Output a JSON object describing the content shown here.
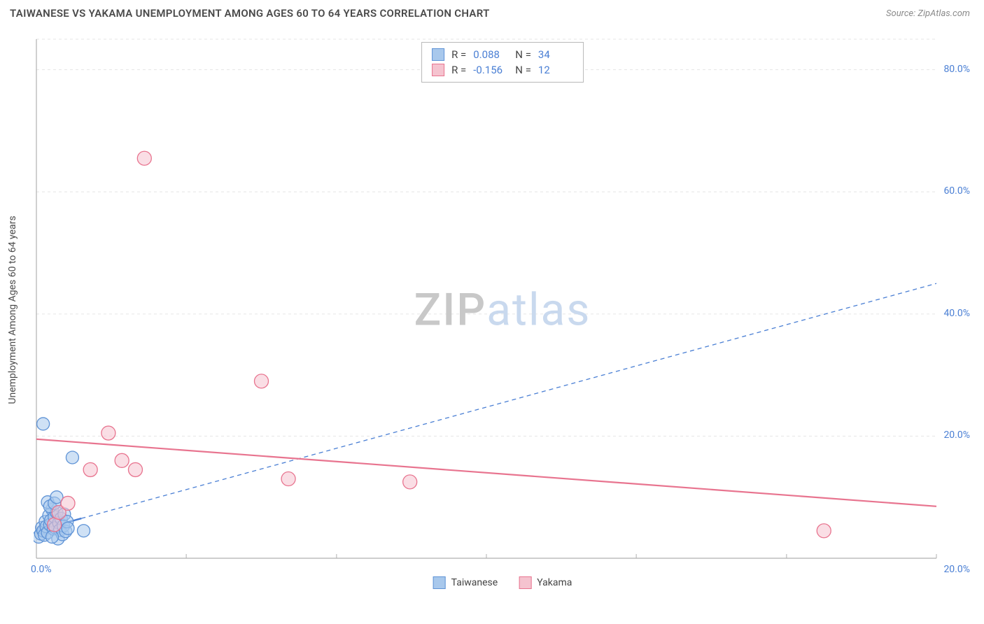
{
  "header": {
    "title": "TAIWANESE VS YAKAMA UNEMPLOYMENT AMONG AGES 60 TO 64 YEARS CORRELATION CHART",
    "source": "Source: ZipAtlas.com"
  },
  "chart": {
    "type": "scatter",
    "ylabel": "Unemployment Among Ages 60 to 64 years",
    "xlim": [
      0,
      20
    ],
    "ylim": [
      0,
      85
    ],
    "xtick_positions": [
      0,
      3.33,
      6.67,
      10,
      13.33,
      16.67,
      20
    ],
    "xtick_labels": [
      "0.0%",
      "",
      "",
      "",
      "",
      "",
      "20.0%"
    ],
    "ytick_positions": [
      20,
      40,
      60,
      80
    ],
    "ytick_labels": [
      "20.0%",
      "40.0%",
      "60.0%",
      "80.0%"
    ],
    "grid_color": "#e5e5e5",
    "grid_dash": "4,4",
    "axis_color": "#b0b0b0",
    "background_color": "#ffffff",
    "watermark": {
      "part1": "ZIP",
      "part2": "atlas"
    },
    "series": [
      {
        "name": "Taiwanese",
        "fill": "#a8c8ec",
        "stroke": "#5f93d6",
        "fill_opacity": 0.55,
        "marker_r": 9,
        "points": [
          [
            0.05,
            3.5
          ],
          [
            0.1,
            4.0
          ],
          [
            0.12,
            5.0
          ],
          [
            0.15,
            4.5
          ],
          [
            0.18,
            3.8
          ],
          [
            0.2,
            6.0
          ],
          [
            0.22,
            5.2
          ],
          [
            0.25,
            4.2
          ],
          [
            0.28,
            7.0
          ],
          [
            0.3,
            5.5
          ],
          [
            0.32,
            6.2
          ],
          [
            0.35,
            8.0
          ],
          [
            0.38,
            4.8
          ],
          [
            0.4,
            6.8
          ],
          [
            0.42,
            5.0
          ],
          [
            0.45,
            7.5
          ],
          [
            0.15,
            22.0
          ],
          [
            0.8,
            16.5
          ],
          [
            0.48,
            3.2
          ],
          [
            0.5,
            5.8
          ],
          [
            0.52,
            4.6
          ],
          [
            0.55,
            6.5
          ],
          [
            0.58,
            3.9
          ],
          [
            0.6,
            5.3
          ],
          [
            0.62,
            7.2
          ],
          [
            0.65,
            4.4
          ],
          [
            0.68,
            6.0
          ],
          [
            0.7,
            4.9
          ],
          [
            0.25,
            9.2
          ],
          [
            0.3,
            8.5
          ],
          [
            0.4,
            9.0
          ],
          [
            0.45,
            10.0
          ],
          [
            1.05,
            4.5
          ],
          [
            0.35,
            3.5
          ]
        ],
        "trend": {
          "x1": 0,
          "y1": 4.5,
          "x2": 20,
          "y2": 45,
          "color": "#4a7fd4",
          "width": 1.3,
          "dash": "6,5",
          "solid_until": 1.0
        }
      },
      {
        "name": "Yakama",
        "fill": "#f5c3cf",
        "stroke": "#e8748f",
        "fill_opacity": 0.55,
        "marker_r": 10,
        "points": [
          [
            0.4,
            5.5
          ],
          [
            0.5,
            7.5
          ],
          [
            1.2,
            14.5
          ],
          [
            1.9,
            16.0
          ],
          [
            2.2,
            14.5
          ],
          [
            1.6,
            20.5
          ],
          [
            2.4,
            65.5
          ],
          [
            5.0,
            29.0
          ],
          [
            5.6,
            13.0
          ],
          [
            8.3,
            12.5
          ],
          [
            17.5,
            4.5
          ],
          [
            0.7,
            9.0
          ]
        ],
        "trend": {
          "x1": 0,
          "y1": 19.5,
          "x2": 20,
          "y2": 8.5,
          "color": "#e8748f",
          "width": 2.2,
          "dash": ""
        }
      }
    ],
    "stats_box": {
      "rows": [
        {
          "swatch_fill": "#a8c8ec",
          "swatch_stroke": "#5f93d6",
          "r_label": "R =",
          "r": "0.088",
          "n_label": "N =",
          "n": "34"
        },
        {
          "swatch_fill": "#f5c3cf",
          "swatch_stroke": "#e8748f",
          "r_label": "R =",
          "r": "-0.156",
          "n_label": "N =",
          "n": "12"
        }
      ]
    },
    "legend": [
      {
        "swatch_fill": "#a8c8ec",
        "swatch_stroke": "#5f93d6",
        "label": "Taiwanese"
      },
      {
        "swatch_fill": "#f5c3cf",
        "swatch_stroke": "#e8748f",
        "label": "Yakama"
      }
    ]
  }
}
